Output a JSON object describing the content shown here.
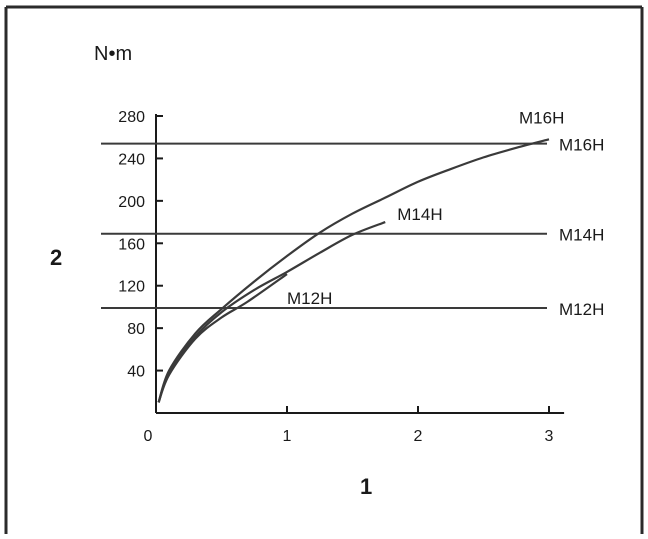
{
  "chart_data": {
    "type": "line",
    "ylabel_unit": "N•m",
    "ylabel": "2",
    "xlabel": "1",
    "xlim": [
      0,
      3.1
    ],
    "ylim": [
      0,
      280
    ],
    "x_ticks": [
      0,
      1,
      2,
      3
    ],
    "y_ticks": [
      40,
      80,
      120,
      160,
      200,
      240,
      280
    ],
    "grid": false,
    "legend": "none",
    "reference_lines": [
      {
        "name": "M16H",
        "y": 254
      },
      {
        "name": "M14H",
        "y": 169
      },
      {
        "name": "M12H",
        "y": 99
      }
    ],
    "series": [
      {
        "name": "M16H",
        "x": [
          0.02,
          0.1,
          0.3,
          0.5,
          0.75,
          1.0,
          1.25,
          1.5,
          1.75,
          2.0,
          2.25,
          2.5,
          2.75,
          3.0
        ],
        "y": [
          10,
          40,
          75,
          98,
          124,
          148,
          170,
          188,
          203,
          218,
          230,
          241,
          250,
          258
        ]
      },
      {
        "name": "M14H",
        "x": [
          0.02,
          0.1,
          0.3,
          0.5,
          0.75,
          1.0,
          1.25,
          1.5,
          1.75
        ],
        "y": [
          10,
          38,
          72,
          95,
          116,
          133,
          151,
          168,
          180
        ]
      },
      {
        "name": "M12H",
        "x": [
          0.02,
          0.1,
          0.3,
          0.5,
          0.7,
          1.0
        ],
        "y": [
          10,
          36,
          70,
          90,
          105,
          131
        ]
      }
    ],
    "colors": {
      "axis": "#1a1a1a",
      "line": "#3a3a3a",
      "frame": "#2b2b2b"
    }
  }
}
